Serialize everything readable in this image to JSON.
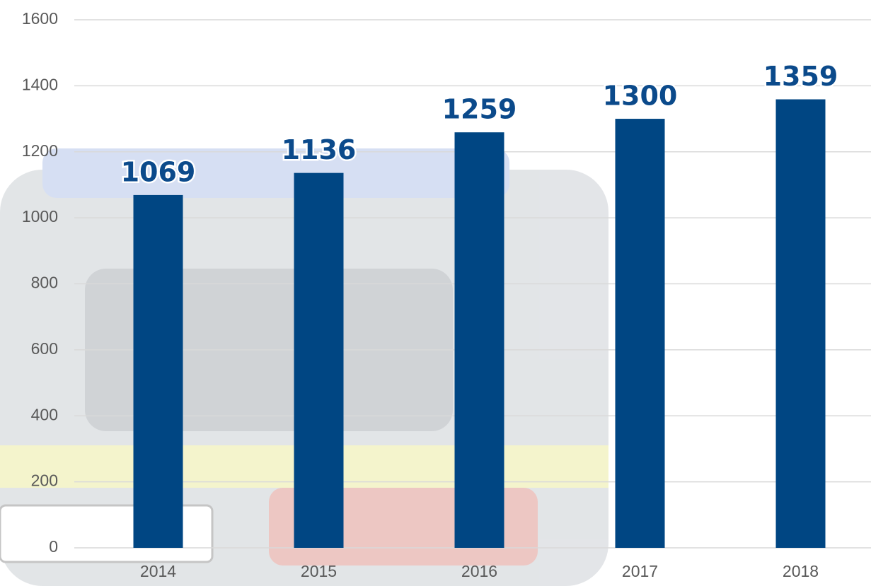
{
  "chart_data": {
    "type": "bar",
    "categories": [
      "2014",
      "2015",
      "2016",
      "2017",
      "2018"
    ],
    "values": [
      1069,
      1136,
      1259,
      1300,
      1359
    ],
    "color": "#004683",
    "ylim": [
      0,
      1600
    ],
    "yticks": [
      0,
      200,
      400,
      600,
      800,
      1000,
      1200,
      1400,
      1600
    ],
    "grid": true
  }
}
